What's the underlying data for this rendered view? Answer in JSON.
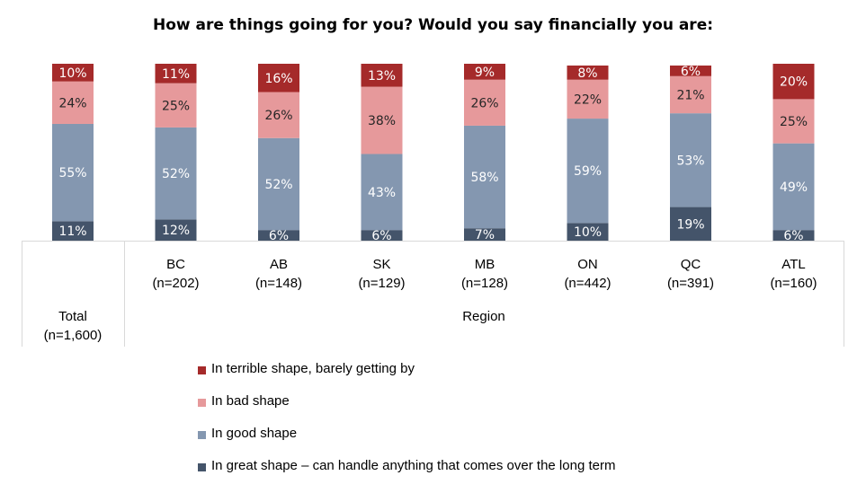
{
  "chart_data": {
    "type": "bar",
    "stacked": true,
    "title": "How are things going for you? Would you say financially you are:",
    "categories": [
      {
        "name": "Total",
        "n": "(n=1,600)"
      },
      {
        "name": "BC",
        "n": "(n=202)"
      },
      {
        "name": "AB",
        "n": "(n=148)"
      },
      {
        "name": "SK",
        "n": "(n=129)"
      },
      {
        "name": "MB",
        "n": "(n=128)"
      },
      {
        "name": "ON",
        "n": "(n=442)"
      },
      {
        "name": "QC",
        "n": "(n=391)"
      },
      {
        "name": "ATL",
        "n": "(n=160)"
      }
    ],
    "group_label": "Region",
    "series": [
      {
        "name": "In great shape – can handle anything that comes over the long term",
        "color": "#44546a",
        "values": [
          11,
          12,
          6,
          6,
          7,
          10,
          19,
          6
        ],
        "labels": [
          "11%",
          "12%",
          "6%",
          "6%",
          "7%",
          "10%",
          "19%",
          "6%"
        ]
      },
      {
        "name": "In good shape",
        "color": "#8497b0",
        "values": [
          55,
          52,
          52,
          43,
          58,
          59,
          53,
          49
        ],
        "labels": [
          "55%",
          "52%",
          "52%",
          "43%",
          "58%",
          "59%",
          "53%",
          "49%"
        ]
      },
      {
        "name": "In bad shape",
        "color": "#e6999b",
        "values": [
          24,
          25,
          26,
          38,
          26,
          22,
          21,
          25
        ],
        "labels": [
          "24%",
          "25%",
          "26%",
          "38%",
          "26%",
          "22%",
          "21%",
          "25%"
        ]
      },
      {
        "name": "In terrible shape, barely getting by",
        "color": "#a52a2a",
        "values": [
          10,
          11,
          16,
          13,
          9,
          8,
          6,
          20
        ],
        "labels": [
          "10%",
          "11%",
          "16%",
          "13%",
          "9%",
          "8%",
          "6%",
          "20%"
        ]
      }
    ],
    "ylim": [
      0,
      100
    ],
    "legend_position": "bottom-left",
    "grid": false
  }
}
